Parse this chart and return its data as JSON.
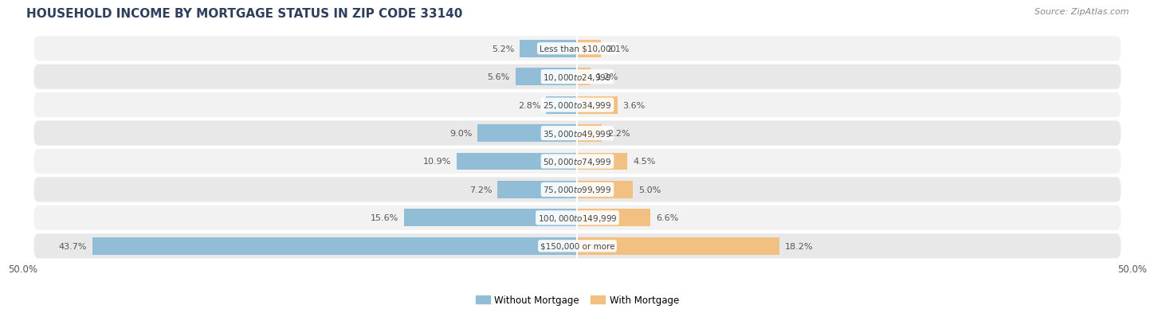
{
  "title": "HOUSEHOLD INCOME BY MORTGAGE STATUS IN ZIP CODE 33140",
  "source": "Source: ZipAtlas.com",
  "categories": [
    "Less than $10,000",
    "$10,000 to $24,999",
    "$25,000 to $34,999",
    "$35,000 to $49,999",
    "$50,000 to $74,999",
    "$75,000 to $99,999",
    "$100,000 to $149,999",
    "$150,000 or more"
  ],
  "without_mortgage": [
    5.2,
    5.6,
    2.8,
    9.0,
    10.9,
    7.2,
    15.6,
    43.7
  ],
  "with_mortgage": [
    2.1,
    1.2,
    3.6,
    2.2,
    4.5,
    5.0,
    6.6,
    18.2
  ],
  "color_without": "#92BDD6",
  "color_with": "#F2C080",
  "bg_even": "#F2F2F2",
  "bg_odd": "#E8E8E8",
  "xlim": 50.0,
  "axis_label_left": "50.0%",
  "axis_label_right": "50.0%",
  "title_fontsize": 11,
  "source_fontsize": 8,
  "bar_label_fontsize": 8,
  "cat_label_fontsize": 7.5,
  "legend_fontsize": 8.5
}
